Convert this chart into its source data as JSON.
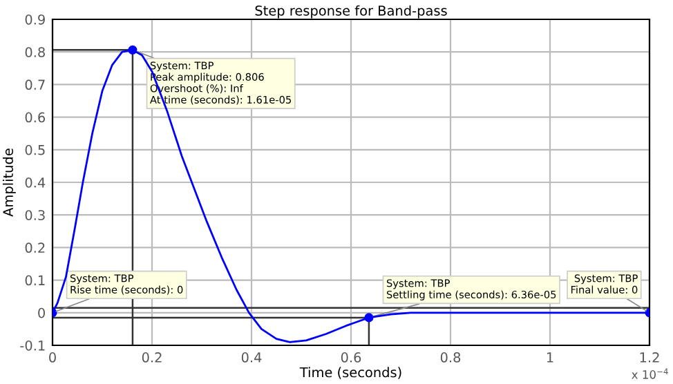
{
  "chart_data": {
    "type": "line",
    "title": "Step response for Band-pass",
    "xlabel": "Time (seconds)",
    "ylabel": "Amplitude",
    "xlim": [
      0,
      1.2
    ],
    "xticks": [
      0,
      0.2,
      0.4,
      0.6,
      0.8,
      1,
      1.2
    ],
    "ylim": [
      -0.1,
      0.9
    ],
    "yticks": [
      -0.1,
      0,
      0.1,
      0.2,
      0.3,
      0.4,
      0.5,
      0.6,
      0.7,
      0.8,
      0.9
    ],
    "grid": true,
    "series": [
      {
        "color": "#0000ff",
        "x": [
          0,
          0.01,
          0.027,
          0.045,
          0.061,
          0.08,
          0.1,
          0.12,
          0.14,
          0.161,
          0.18,
          0.2,
          0.23,
          0.26,
          0.28,
          0.31,
          0.34,
          0.37,
          0.395,
          0.42,
          0.45,
          0.477,
          0.51,
          0.55,
          0.59,
          0.636,
          0.68,
          0.72,
          0.8,
          1.0,
          1.2
        ],
        "values": [
          0,
          0.03,
          0.11,
          0.26,
          0.4,
          0.55,
          0.68,
          0.76,
          0.8,
          0.806,
          0.79,
          0.74,
          0.62,
          0.48,
          0.4,
          0.28,
          0.17,
          0.07,
          0,
          -0.05,
          -0.08,
          -0.09,
          -0.085,
          -0.065,
          -0.04,
          -0.015,
          -0.005,
          0,
          0,
          0,
          0
        ]
      },
      {
        "type": "scatter",
        "color": "#0000ff",
        "marker": "circle",
        "x": [
          0,
          0.161,
          0.636,
          1.2
        ],
        "values": [
          0,
          0.806,
          -0.015,
          0
        ]
      }
    ],
    "ref_lines": [
      {
        "axis": "y",
        "value": 0.015,
        "color": "#333333"
      },
      {
        "axis": "y",
        "value": -0.015,
        "color": "#333333"
      },
      {
        "axis": "y",
        "value": 0.806,
        "color": "#333333"
      },
      {
        "axis": "x",
        "value": 0.161,
        "color": "#333333"
      },
      {
        "axis": "x",
        "value": 0.636,
        "color": "#333333"
      }
    ],
    "annotations": [
      {
        "text": "System: TBP\nRise time (seconds): 0",
        "x": 0,
        "y": 0
      },
      {
        "text": "System: TBP\nPeak amplitude: 0.806\nOvershoot (%): Inf\nAt time (seconds): 1.61e-05",
        "x": 0.161,
        "y": 0.806
      },
      {
        "text": "System: TBP\nSettling time (seconds): 6.36e-05",
        "x": 0.636,
        "y": -0.015
      },
      {
        "text": "System: TBP\nFinal value: 0",
        "x": 1.2,
        "y": 0
      },
      "x 10$^{−4}$"
    ]
  }
}
